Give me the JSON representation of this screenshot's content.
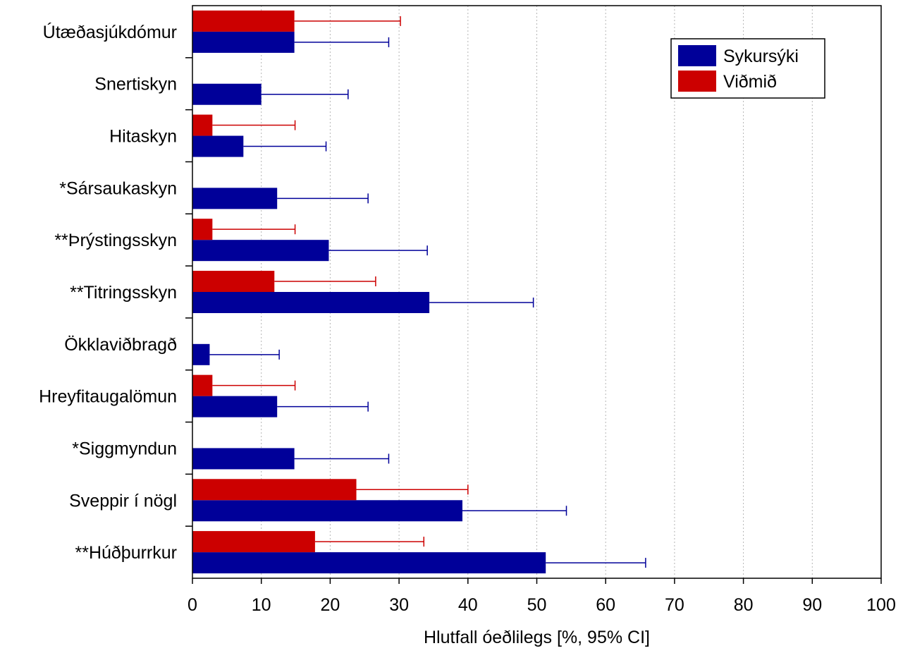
{
  "chart_data": {
    "type": "bar",
    "orientation": "horizontal",
    "xlabel": "Hlutfall óeðlilegs [%, 95% CI]",
    "xlim": [
      0,
      100
    ],
    "xticks": [
      "0",
      "10",
      "20",
      "30",
      "40",
      "50",
      "60",
      "70",
      "80",
      "90",
      "100"
    ],
    "grid": "vertical dotted",
    "legend_position": "top-right",
    "categories": [
      "Útæðasjúkdómur",
      "Snertiskyn",
      "Hitaskyn",
      "*Sársaukaskyn",
      "**Þrýstingsskyn",
      "**Titringsskyn",
      "Ökklaviðbragð",
      "Hreyfitaugalömun",
      "*Siggmyndun",
      "Sveppir í nögl",
      "**Húðþurrkur"
    ],
    "series": [
      {
        "name": "Sykursýki",
        "color": "#000099",
        "values": [
          14.8,
          10.0,
          7.4,
          12.3,
          19.8,
          34.4,
          2.5,
          12.3,
          14.8,
          39.2,
          51.3
        ],
        "ci_upper": [
          28.5,
          22.6,
          19.4,
          25.5,
          34.1,
          49.5,
          12.6,
          25.5,
          28.5,
          54.3,
          65.8
        ]
      },
      {
        "name": "Viðmið",
        "color": "#cc0000",
        "values": [
          14.8,
          null,
          2.9,
          null,
          2.9,
          11.9,
          null,
          2.9,
          null,
          23.8,
          17.8
        ],
        "ci_upper": [
          30.2,
          null,
          14.9,
          null,
          14.9,
          26.6,
          null,
          14.9,
          null,
          40.0,
          33.6
        ]
      }
    ]
  }
}
